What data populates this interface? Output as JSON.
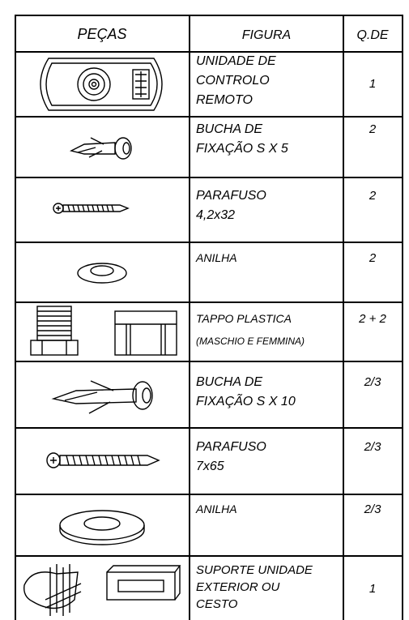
{
  "header": {
    "parts": "PEÇAS",
    "figure": "FIGURA",
    "quantity": "Q.DE"
  },
  "rows": [
    {
      "description": [
        "UNIDADE DE",
        "CONTROLO",
        "REMOTO"
      ],
      "quantity": "1"
    },
    {
      "description": [
        "BUCHA DE",
        "FIXAÇÃO S X 5"
      ],
      "quantity": "2"
    },
    {
      "description": [
        "PARAFUSO",
        "4,2x32"
      ],
      "quantity": "2"
    },
    {
      "description": [
        "ANILHA"
      ],
      "quantity": "2"
    },
    {
      "description": [
        "TAPPO PLASTICA",
        "(MASCHIO E FEMMINA)"
      ],
      "quantity": "2 + 2"
    },
    {
      "description": [
        "BUCHA DE",
        "FIXAÇÃO S X 10"
      ],
      "quantity": "2/3"
    },
    {
      "description": [
        "PARAFUSO",
        "7x65"
      ],
      "quantity": "2/3"
    },
    {
      "description": [
        "ANILHA"
      ],
      "quantity": "2/3"
    },
    {
      "description": [
        "SUPORTE UNIDADE",
        "EXTERIOR OU",
        "CESTO"
      ],
      "quantity": "1"
    }
  ]
}
